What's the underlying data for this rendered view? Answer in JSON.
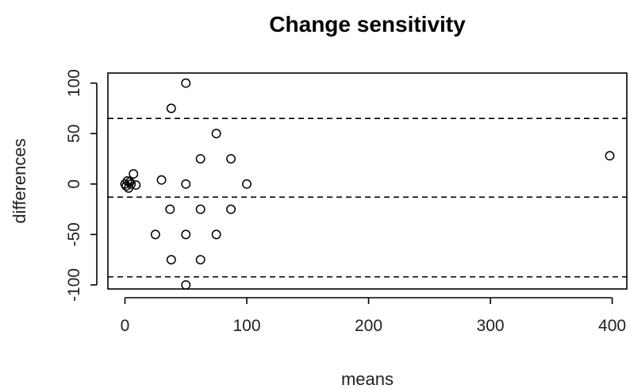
{
  "chart_data": {
    "type": "scatter",
    "title": "Change sensitivity",
    "xlabel": "means",
    "ylabel": "differences",
    "xlim": [
      -14,
      412
    ],
    "ylim": [
      -104,
      110
    ],
    "x_ticks": [
      0,
      100,
      200,
      300,
      400
    ],
    "y_ticks": [
      -100,
      -50,
      0,
      50,
      100
    ],
    "reference_lines": [
      -92,
      -13,
      65
    ],
    "grid": false,
    "points": [
      {
        "x": 0,
        "y": 0
      },
      {
        "x": 1,
        "y": -2
      },
      {
        "x": 2,
        "y": 3
      },
      {
        "x": 3,
        "y": -4
      },
      {
        "x": 4,
        "y": 2
      },
      {
        "x": 5,
        "y": 0
      },
      {
        "x": 7,
        "y": 10
      },
      {
        "x": 9,
        "y": -1
      },
      {
        "x": 30,
        "y": 4
      },
      {
        "x": 50,
        "y": 100
      },
      {
        "x": 38,
        "y": 75
      },
      {
        "x": 75,
        "y": 50
      },
      {
        "x": 62,
        "y": 25
      },
      {
        "x": 87,
        "y": 25
      },
      {
        "x": 50,
        "y": 0
      },
      {
        "x": 100,
        "y": 0
      },
      {
        "x": 37,
        "y": -25
      },
      {
        "x": 62,
        "y": -25
      },
      {
        "x": 87,
        "y": -25
      },
      {
        "x": 25,
        "y": -50
      },
      {
        "x": 50,
        "y": -50
      },
      {
        "x": 75,
        "y": -50
      },
      {
        "x": 38,
        "y": -75
      },
      {
        "x": 62,
        "y": -75
      },
      {
        "x": 50,
        "y": -100
      },
      {
        "x": 398,
        "y": 28
      }
    ]
  }
}
